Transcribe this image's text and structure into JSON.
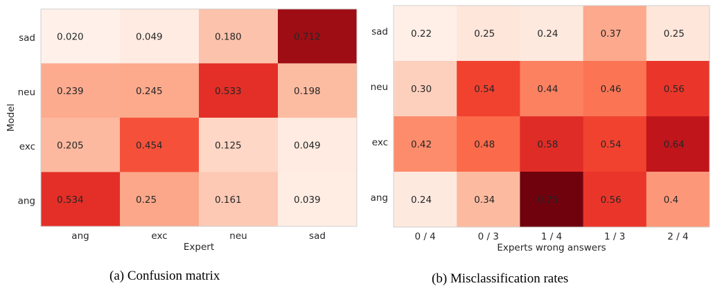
{
  "chart_data": [
    {
      "type": "heatmap",
      "caption": "(a) Confusion matrix",
      "xlabel": "Expert",
      "ylabel": "Model",
      "x_categories": [
        "ang",
        "exc",
        "neu",
        "sad"
      ],
      "y_categories": [
        "sad",
        "neu",
        "exc",
        "ang"
      ],
      "values": [
        [
          "0.020",
          "0.049",
          "0.180",
          "0.712"
        ],
        [
          "0.239",
          "0.245",
          "0.533",
          "0.198"
        ],
        [
          "0.205",
          "0.454",
          "0.125",
          "0.049"
        ],
        [
          "0.534",
          "0.25",
          "0.161",
          "0.039"
        ]
      ],
      "colormap": "Reds",
      "vmin": 0.0,
      "vmax": 0.8,
      "grid": false,
      "legend": false
    },
    {
      "type": "heatmap",
      "caption": "(b) Misclassification rates",
      "xlabel": "Experts wrong answers",
      "ylabel": "",
      "x_categories": [
        "0 / 4",
        "0 / 3",
        "1 / 4",
        "1 / 3",
        "2 / 4"
      ],
      "y_categories": [
        "sad",
        "neu",
        "exc",
        "ang"
      ],
      "values": [
        [
          "0.22",
          "0.25",
          "0.24",
          "0.37",
          "0.25"
        ],
        [
          "0.30",
          "0.54",
          "0.44",
          "0.46",
          "0.56"
        ],
        [
          "0.42",
          "0.48",
          "0.58",
          "0.54",
          "0.64"
        ],
        [
          "0.24",
          "0.34",
          "0.75",
          "0.56",
          "0.4"
        ]
      ],
      "colormap": "Reds",
      "vmin": 0.2,
      "vmax": 0.76,
      "grid": false,
      "legend": false
    }
  ]
}
